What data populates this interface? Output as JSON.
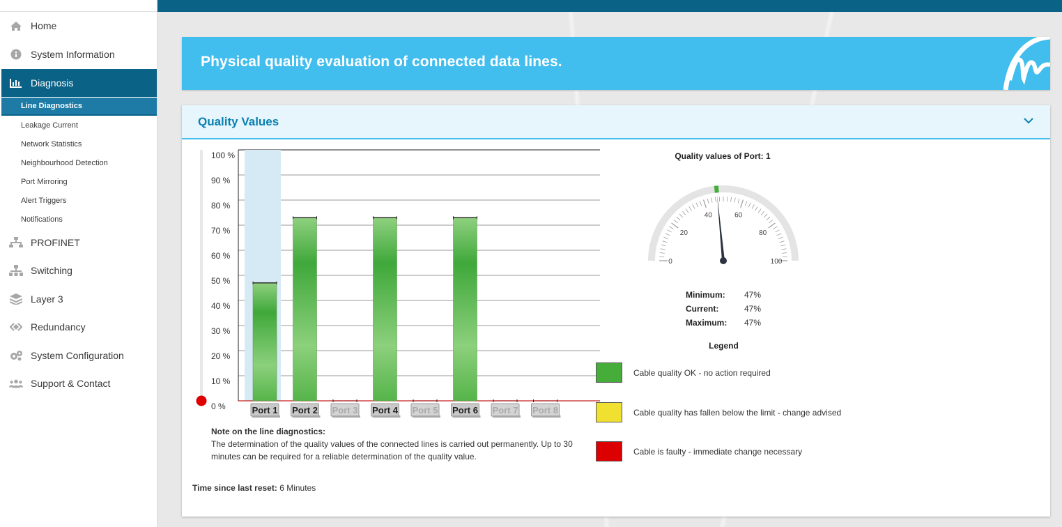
{
  "sidebar": {
    "items": [
      {
        "label": "Home",
        "icon": "home-icon"
      },
      {
        "label": "System Information",
        "icon": "info-icon"
      },
      {
        "label": "Diagnosis",
        "icon": "bar-chart-icon"
      },
      {
        "label": "PROFINET",
        "icon": "network-icon"
      },
      {
        "label": "Switching",
        "icon": "switch-icon"
      },
      {
        "label": "Layer 3",
        "icon": "layers-icon"
      },
      {
        "label": "Redundancy",
        "icon": "redundancy-icon"
      },
      {
        "label": "System Configuration",
        "icon": "gears-icon"
      },
      {
        "label": "Support & Contact",
        "icon": "users-icon"
      }
    ],
    "subitems": [
      {
        "label": "Line Diagnostics"
      },
      {
        "label": "Leakage Current"
      },
      {
        "label": "Network Statistics"
      },
      {
        "label": "Neighbourhood Detection"
      },
      {
        "label": "Port Mirroring"
      },
      {
        "label": "Alert Triggers"
      },
      {
        "label": "Notifications"
      }
    ]
  },
  "banner": {
    "title": "Physical quality evaluation of connected data lines."
  },
  "panel": {
    "title": "Quality Values"
  },
  "chart_data": {
    "type": "bar",
    "categories": [
      "Port 1",
      "Port 2",
      "Port 3",
      "Port 4",
      "Port 5",
      "Port 6",
      "Port 7",
      "Port 8"
    ],
    "values": [
      47,
      73,
      0,
      73,
      0,
      73,
      0,
      0
    ],
    "active": [
      true,
      true,
      false,
      true,
      false,
      true,
      false,
      false
    ],
    "selected_index": 0,
    "ylim": [
      0,
      100
    ],
    "yticks": [
      "0 %",
      "10 %",
      "20 %",
      "30 %",
      "40 %",
      "50 %",
      "60 %",
      "70 %",
      "80 %",
      "90 %",
      "100 %"
    ],
    "bar_color": "#46ad3b"
  },
  "gauge": {
    "title": "Quality values of Port: 1",
    "value": 47,
    "min": 0,
    "max": 100,
    "tick_labels": [
      "0",
      "20",
      "40",
      "60",
      "80",
      "100"
    ]
  },
  "stats": {
    "minimum_label": "Minimum:",
    "minimum_value": "47%",
    "current_label": "Current:",
    "current_value": "47%",
    "maximum_label": "Maximum:",
    "maximum_value": "47%"
  },
  "legend": {
    "title": "Legend",
    "items": [
      {
        "color": "#46ad3b",
        "text": "Cable quality OK - no action required"
      },
      {
        "color": "#f0e030",
        "text": "Cable quality has fallen below the limit - change advised"
      },
      {
        "color": "#dd0000",
        "text": "Cable is faulty - immediate change necessary"
      }
    ]
  },
  "note": {
    "title": "Note on the line diagnostics:",
    "text": "The determination of the quality values of the connected lines is carried out permanently. Up to 30 minutes can be required for a reliable determination of the quality value."
  },
  "reset": {
    "label": "Time since last reset:",
    "value": "6 Minutes"
  }
}
